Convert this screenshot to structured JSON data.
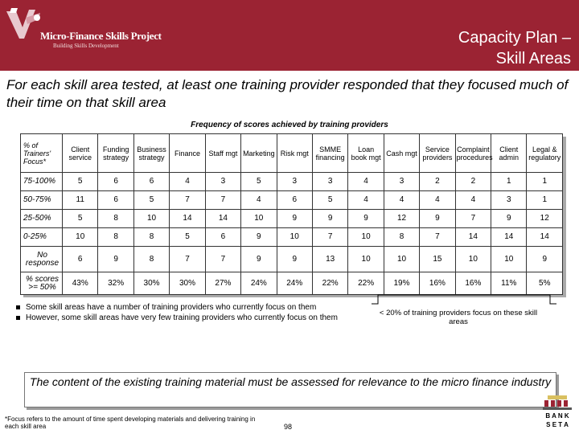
{
  "header": {
    "logo_text": "Micro-Finance Skills Project",
    "logo_subtext": "Building Skills Development",
    "title_line1": "Capacity Plan –",
    "title_line2": "Skill Areas",
    "background_color": "#9b2333"
  },
  "intro_text": "For each skill area tested, at least one training provider responded that they focused much of their time on that skill area",
  "table": {
    "caption": "Frequency of scores achieved by training providers",
    "corner_header": "% of Trainers' Focus*",
    "columns": [
      "Client service",
      "Funding strategy",
      "Business strategy",
      "Finance",
      "Staff mgt",
      "Marketing",
      "Risk mgt",
      "SMME financing",
      "Loan book mgt",
      "Cash mgt",
      "Service providers",
      "Complaint procedures",
      "Client admin",
      "Legal & regulatory"
    ],
    "rows": [
      {
        "label": "75-100%",
        "values": [
          "5",
          "6",
          "6",
          "4",
          "3",
          "5",
          "3",
          "3",
          "4",
          "3",
          "2",
          "2",
          "1",
          "1"
        ]
      },
      {
        "label": "50-75%",
        "values": [
          "11",
          "6",
          "5",
          "7",
          "7",
          "4",
          "6",
          "5",
          "4",
          "4",
          "4",
          "4",
          "3",
          "1"
        ]
      },
      {
        "label": "25-50%",
        "values": [
          "5",
          "8",
          "10",
          "14",
          "14",
          "10",
          "9",
          "9",
          "9",
          "12",
          "9",
          "7",
          "9",
          "12"
        ]
      },
      {
        "label": "0-25%",
        "values": [
          "10",
          "8",
          "8",
          "5",
          "6",
          "9",
          "10",
          "7",
          "10",
          "8",
          "7",
          "14",
          "14",
          "14"
        ]
      },
      {
        "label": "No response",
        "values": [
          "6",
          "9",
          "8",
          "7",
          "7",
          "9",
          "9",
          "13",
          "10",
          "10",
          "15",
          "10",
          "10",
          "9"
        ]
      },
      {
        "label": "% scores >= 50%",
        "values": [
          "43%",
          "32%",
          "30%",
          "30%",
          "27%",
          "24%",
          "24%",
          "22%",
          "22%",
          "19%",
          "16%",
          "16%",
          "11%",
          "5%"
        ]
      }
    ]
  },
  "bullets": [
    "Some skill areas have a number of training providers who currently focus on them",
    "However, some skill areas have very few training providers who currently focus on them"
  ],
  "callout_text": "< 20% of training providers focus on these skill areas",
  "conclusion_text": "The content of the existing training material must be assessed for relevance to the micro finance industry",
  "footnote": "*Focus refers to the amount of time spent developing materials and delivering training in each skill area",
  "page_number": "98",
  "bank_logo_text": "BANK SETA"
}
